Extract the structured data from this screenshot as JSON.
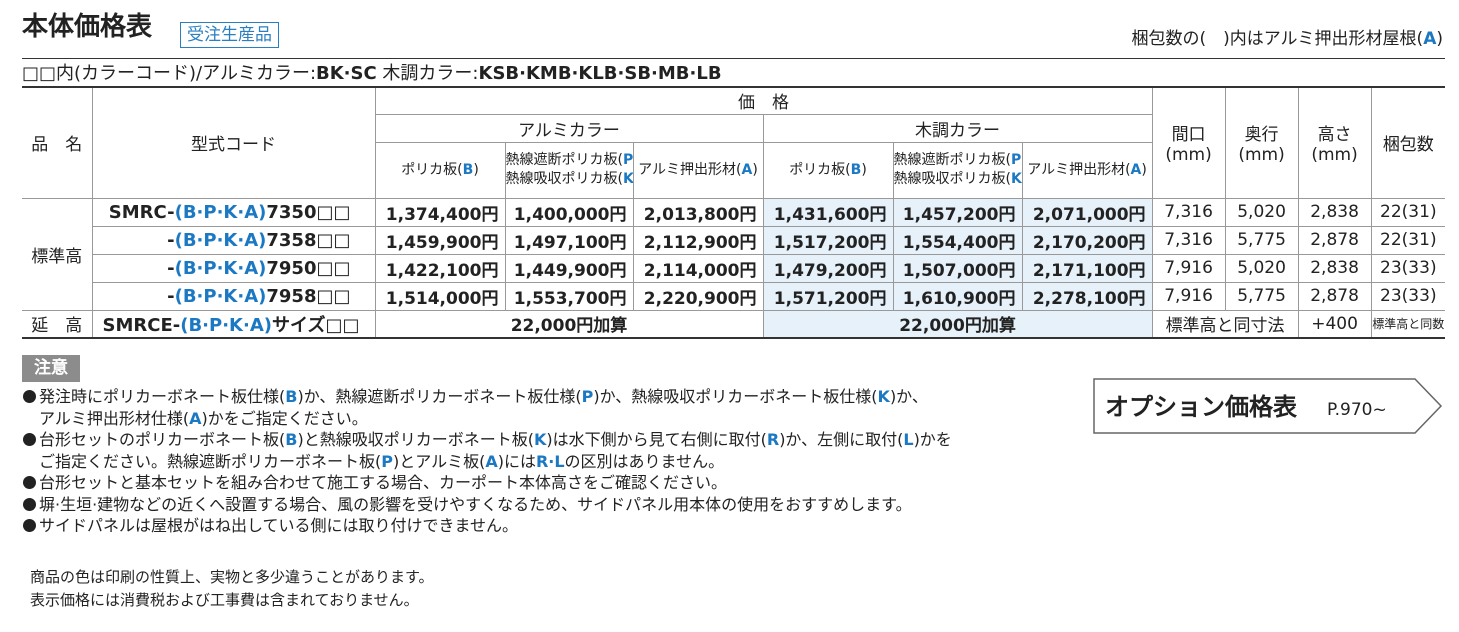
{
  "header": {
    "title": "本体価格表",
    "badge": "受注生産品",
    "packing_note": [
      "梱包数の(　)内はアルミ押出形材屋根(",
      "A",
      ")"
    ],
    "color_codes": [
      "□□内(カラーコード)/アルミカラー:",
      "BK·SC",
      " 木調カラー:",
      "KSB·KMB·KLB·SB·MB·LB"
    ]
  },
  "table": {
    "product": "品　名",
    "model": "型式コード",
    "price": "価　格",
    "groups": [
      {
        "name": "アルミカラー",
        "columns": [
          [
            [
              "ポリカ板(",
              "B",
              ")"
            ]
          ],
          [
            [
              "熱線遮断ポリカ板(",
              "P",
              ")"
            ],
            [
              "熱線吸収ポリカ板(",
              "K",
              ")"
            ]
          ],
          [
            [
              "アルミ押出形材(",
              "A",
              ")"
            ]
          ]
        ]
      },
      {
        "name": "木調カラー",
        "columns": [
          [
            [
              "ポリカ板(",
              "B",
              ")"
            ]
          ],
          [
            [
              "熱線遮断ポリカ板(",
              "P",
              ")"
            ],
            [
              "熱線吸収ポリカ板(",
              "K",
              ")"
            ]
          ],
          [
            [
              "アルミ押出形材(",
              "A",
              ")"
            ]
          ]
        ]
      }
    ],
    "dims": [
      [
        "間口",
        "(mm)"
      ],
      [
        "奥行",
        "(mm)"
      ],
      [
        "高さ",
        "(mm)"
      ]
    ],
    "packing": "梱包数",
    "standard": {
      "label": "標準高",
      "rows": [
        {
          "model": [
            "SMRC-",
            "(B·P·K·A)",
            "7350□□"
          ],
          "prices": [
            "1,374,400円",
            "1,400,000円",
            "2,013,800円",
            "1,431,600円",
            "1,457,200円",
            "2,071,000円"
          ],
          "width": "7,316",
          "depth": "5,020",
          "height": "2,838",
          "packing": "22(31)"
        },
        {
          "model": [
            "-",
            "(B·P·K·A)",
            "7358□□"
          ],
          "prices": [
            "1,459,900円",
            "1,497,100円",
            "2,112,900円",
            "1,517,200円",
            "1,554,400円",
            "2,170,200円"
          ],
          "width": "7,316",
          "depth": "5,775",
          "height": "2,878",
          "packing": "22(31)"
        },
        {
          "model": [
            "-",
            "(B·P·K·A)",
            "7950□□"
          ],
          "prices": [
            "1,422,100円",
            "1,449,900円",
            "2,114,000円",
            "1,479,200円",
            "1,507,000円",
            "2,171,100円"
          ],
          "width": "7,916",
          "depth": "5,020",
          "height": "2,838",
          "packing": "23(33)"
        },
        {
          "model": [
            "-",
            "(B·P·K·A)",
            "7958□□"
          ],
          "prices": [
            "1,514,000円",
            "1,553,700円",
            "2,220,900円",
            "1,571,200円",
            "1,610,900円",
            "2,278,100円"
          ],
          "width": "7,916",
          "depth": "5,775",
          "height": "2,878",
          "packing": "23(33)"
        }
      ]
    },
    "extension": {
      "label": "延　高",
      "model": [
        "SMRCE-",
        "(B·P·K·A)",
        "サイズ□□"
      ],
      "alumi": "22,000円加算",
      "wood": "22,000円加算",
      "size": "標準高と同寸法",
      "height": "+400",
      "packing": "標準高と同数"
    }
  },
  "notes": {
    "label": "注意",
    "items": [
      [
        [
          "発注時にポリカーボネート板仕様(",
          "B",
          ")か、熱線遮断ポリカーボネート板仕様(",
          "P",
          ")か、熱線吸収ポリカーボネート板仕様(",
          "K",
          ")か、"
        ],
        [
          "アルミ押出形材仕様(",
          "A",
          ")かをご指定ください。"
        ]
      ],
      [
        [
          "台形セットのポリカーボネート板(",
          "B",
          ")と熱線吸収ポリカーボネート板(",
          "K",
          ")は水下側から見て右側に取付(",
          "R",
          ")か、左側に取付(",
          "L",
          ")かを"
        ],
        [
          "ご指定ください。熱線遮断ポリカーボネート板(",
          "P",
          ")とアルミ板(",
          "A",
          ")には",
          "R·L",
          "の区別はありません。"
        ]
      ],
      [
        [
          "台形セットと基本セットを組み合わせて施工する場合、カーポート本体高さをご確認ください。"
        ]
      ],
      [
        [
          "塀·生垣·建物などの近くへ設置する場合、風の影響を受けやすくなるため、サイドパネル用本体の使用をおすすめします。"
        ]
      ],
      [
        [
          "サイドパネルは屋根がはね出している側には取り付けできません。"
        ]
      ]
    ]
  },
  "option": {
    "label": "オプション価格表",
    "page": "P.970~"
  },
  "footer": [
    "商品の色は印刷の性質上、実物と多少違うことがあります。",
    "表示価格には消費税および工事費は含まれておりません。"
  ]
}
